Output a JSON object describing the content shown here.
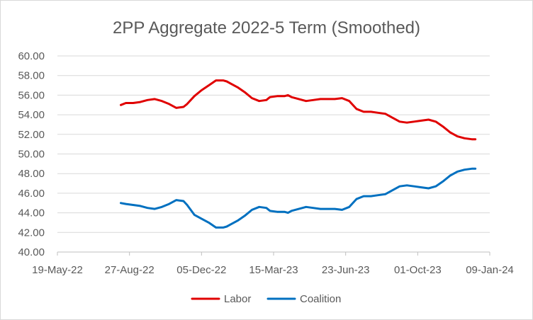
{
  "chart_data": {
    "type": "line",
    "title": "2PP Aggregate 2022-5 Term (Smoothed)",
    "xlabel": "",
    "ylabel": "",
    "ylim": [
      40,
      60
    ],
    "y_ticks": [
      "40.00",
      "42.00",
      "44.00",
      "46.00",
      "48.00",
      "50.00",
      "52.00",
      "54.00",
      "56.00",
      "58.00",
      "60.00"
    ],
    "xlim": [
      "2022-05-19",
      "2024-01-09"
    ],
    "x_ticks": [
      "19-May-22",
      "27-Aug-22",
      "05-Dec-22",
      "15-Mar-23",
      "23-Jun-23",
      "01-Oct-23",
      "09-Jan-24"
    ],
    "grid": "horizontal",
    "legend": "bottom",
    "x": [
      "2022-08-15",
      "2022-08-22",
      "2022-09-01",
      "2022-09-11",
      "2022-09-21",
      "2022-10-01",
      "2022-10-11",
      "2022-10-21",
      "2022-10-31",
      "2022-11-10",
      "2022-11-15",
      "2022-11-25",
      "2022-12-05",
      "2022-12-15",
      "2022-12-25",
      "2023-01-04",
      "2023-01-09",
      "2023-01-14",
      "2023-01-24",
      "2023-02-03",
      "2023-02-13",
      "2023-02-23",
      "2023-03-05",
      "2023-03-10",
      "2023-03-20",
      "2023-03-30",
      "2023-04-04",
      "2023-04-09",
      "2023-04-19",
      "2023-04-29",
      "2023-05-09",
      "2023-05-19",
      "2023-05-29",
      "2023-06-08",
      "2023-06-18",
      "2023-06-28",
      "2023-07-08",
      "2023-07-18",
      "2023-07-28",
      "2023-08-07",
      "2023-08-17",
      "2023-08-27",
      "2023-09-06",
      "2023-09-16",
      "2023-09-26",
      "2023-10-06",
      "2023-10-16",
      "2023-10-26",
      "2023-11-05",
      "2023-11-15",
      "2023-11-25",
      "2023-12-05",
      "2023-12-15",
      "2023-12-20"
    ],
    "series": [
      {
        "name": "Labor",
        "color": "#e00000",
        "values": [
          55.0,
          55.2,
          55.2,
          55.3,
          55.5,
          55.6,
          55.4,
          55.1,
          54.7,
          54.8,
          55.1,
          55.9,
          56.5,
          57.0,
          57.5,
          57.5,
          57.4,
          57.2,
          56.8,
          56.3,
          55.7,
          55.4,
          55.5,
          55.8,
          55.9,
          55.9,
          56.0,
          55.8,
          55.6,
          55.4,
          55.5,
          55.6,
          55.6,
          55.6,
          55.7,
          55.4,
          54.6,
          54.3,
          54.3,
          54.2,
          54.1,
          53.7,
          53.3,
          53.2,
          53.3,
          53.4,
          53.5,
          53.3,
          52.8,
          52.2,
          51.8,
          51.6,
          51.5,
          51.5
        ]
      },
      {
        "name": "Coalition",
        "color": "#0070c0",
        "values": [
          45.0,
          44.9,
          44.8,
          44.7,
          44.5,
          44.4,
          44.6,
          44.9,
          45.3,
          45.2,
          44.8,
          43.8,
          43.4,
          43.0,
          42.5,
          42.5,
          42.6,
          42.8,
          43.2,
          43.7,
          44.3,
          44.6,
          44.5,
          44.2,
          44.1,
          44.1,
          44.0,
          44.2,
          44.4,
          44.6,
          44.5,
          44.4,
          44.4,
          44.4,
          44.3,
          44.6,
          45.4,
          45.7,
          45.7,
          45.8,
          45.9,
          46.3,
          46.7,
          46.8,
          46.7,
          46.6,
          46.5,
          46.7,
          47.2,
          47.8,
          48.2,
          48.4,
          48.5,
          48.5
        ]
      }
    ]
  }
}
